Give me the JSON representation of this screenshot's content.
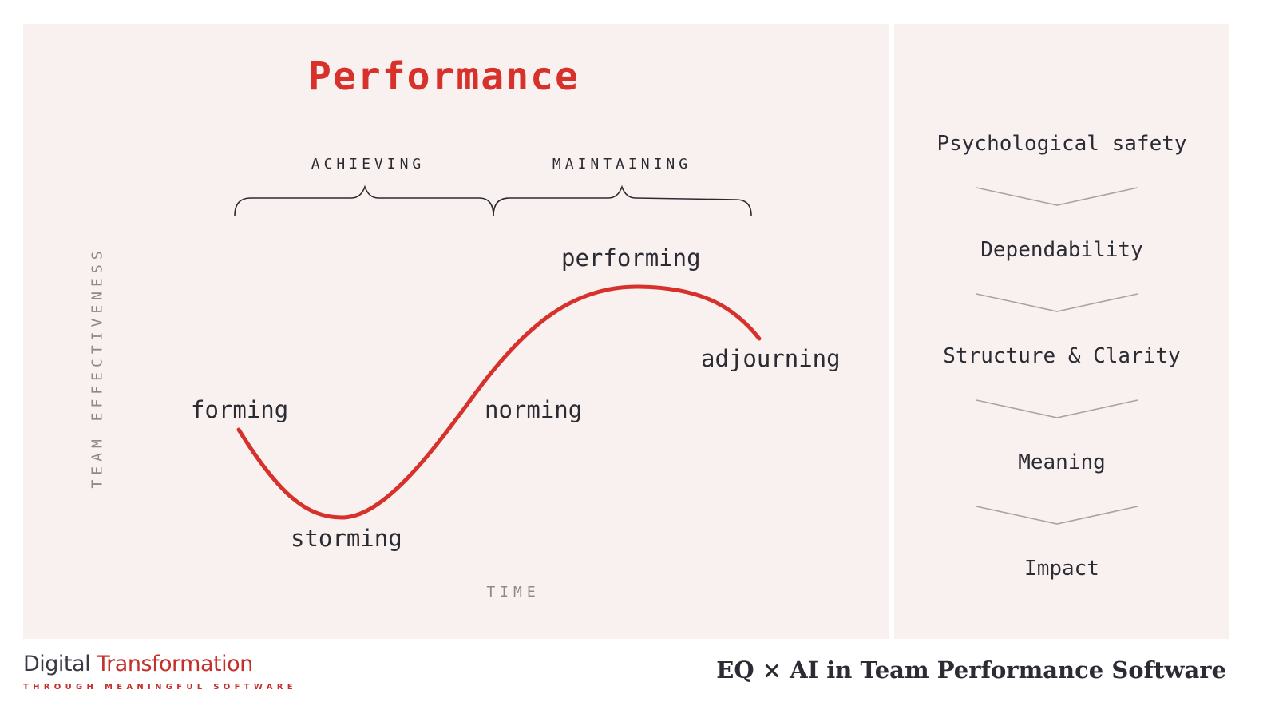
{
  "diagram": {
    "title": "Performance",
    "phases": {
      "achieving": "ACHIEVING",
      "maintaining": "MAINTAINING"
    },
    "y_axis_label": "TEAM EFFECTIVENESS",
    "x_axis_label": "TIME",
    "stages": {
      "forming": "forming",
      "storming": "storming",
      "norming": "norming",
      "performing": "performing",
      "adjourning": "adjourning"
    }
  },
  "ladder": {
    "items": [
      "Psychological safety",
      "Dependability",
      "Structure & Clarity",
      "Meaning",
      "Impact"
    ]
  },
  "footer": {
    "brand_part1": "Digital ",
    "brand_part2": "Transformation",
    "brand_tagline": "THROUGH MEANINGFUL SOFTWARE",
    "presentation_title": "EQ × AI in Team Performance Software"
  },
  "colors": {
    "accent": "#d6322b",
    "panel_bg": "#f9f1f0",
    "text": "#2b2b33",
    "muted": "#8a8a8a"
  }
}
